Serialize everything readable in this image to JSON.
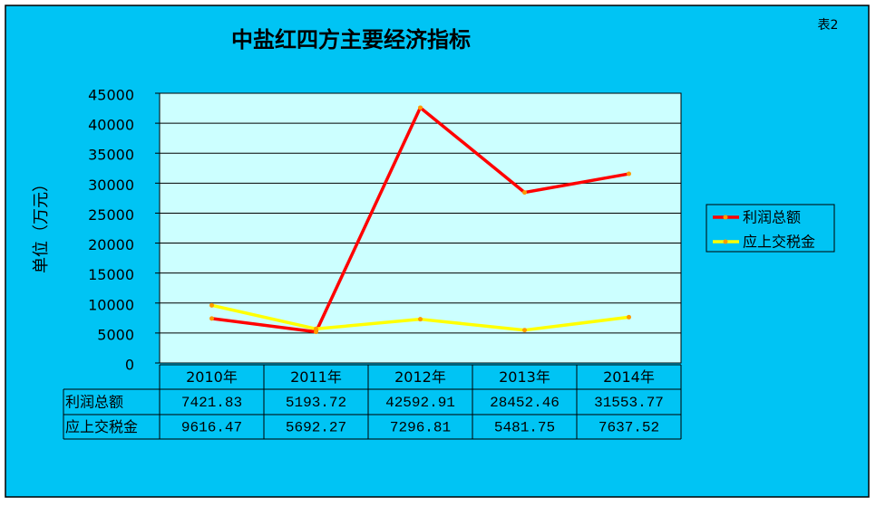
{
  "chart_data": {
    "type": "line",
    "title": "中盐红四方主要经济指标",
    "annotation": "表2",
    "y_label": "单位（万元）",
    "categories": [
      "2010年",
      "2011年",
      "2012年",
      "2013年",
      "2014年"
    ],
    "series": [
      {
        "name": "利润总额",
        "color": "#ff0000",
        "values": [
          7421.83,
          5193.72,
          42592.91,
          28452.46,
          31553.77
        ]
      },
      {
        "name": "应上交税金",
        "color": "#ffff00",
        "values": [
          9616.47,
          5692.27,
          7296.81,
          5481.75,
          7637.52
        ]
      }
    ],
    "marker_color": "#ff9900",
    "ylim": [
      0,
      45000
    ],
    "yticks": [
      0,
      5000,
      10000,
      15000,
      20000,
      25000,
      30000,
      35000,
      40000,
      45000
    ],
    "grid": true,
    "legend": "right"
  }
}
